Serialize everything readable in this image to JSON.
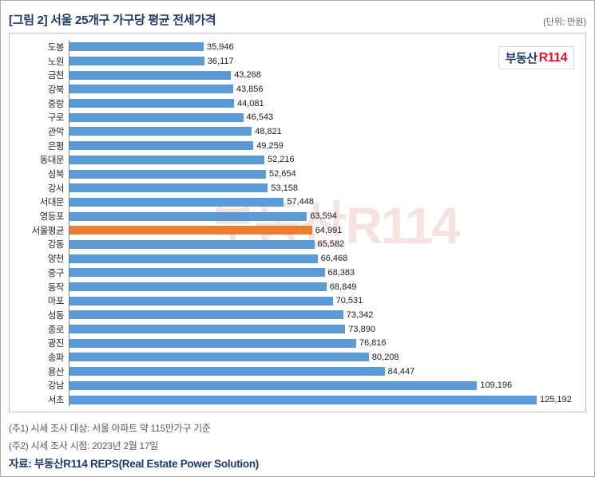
{
  "header": {
    "title": "[그림 2] 서울 25개구 가구당 평균 전세가격",
    "unit_label": "(단위: 만원)"
  },
  "logo": {
    "text_left": "부동산",
    "text_right": "R114"
  },
  "watermark_text": "부동산R114",
  "chart_data": {
    "type": "bar",
    "orientation": "horizontal",
    "title": "[그림 2] 서울 25개구 가구당 평균 전세가격",
    "unit": "만원",
    "categories": [
      "도봉",
      "노원",
      "금천",
      "강북",
      "중랑",
      "구로",
      "관악",
      "은평",
      "동대문",
      "성북",
      "강서",
      "서대문",
      "영등포",
      "서울평균",
      "강동",
      "양천",
      "중구",
      "동작",
      "마포",
      "성동",
      "종로",
      "광진",
      "송파",
      "용산",
      "강남",
      "서초"
    ],
    "values": [
      35946,
      36117,
      43268,
      43856,
      44081,
      46543,
      48821,
      49259,
      52216,
      52654,
      53158,
      57448,
      63594,
      64991,
      65582,
      66468,
      68383,
      68849,
      70531,
      73342,
      73890,
      76816,
      80208,
      84447,
      109196,
      125192
    ],
    "highlight_category": "서울평균",
    "bar_color": "#5B9BD5",
    "highlight_color": "#ED7D31",
    "xlim": [
      0,
      130000
    ],
    "grid": false,
    "legend": false,
    "value_labels_shown": true
  },
  "notes": [
    "(주1) 시세 조사 대상: 서울 아파트 약 115만가구 기준",
    "(주2) 시세 조사 시점: 2023년 2월 17일"
  ],
  "source": "자료: 부동산R114 REPS(Real Estate Power Solution)"
}
